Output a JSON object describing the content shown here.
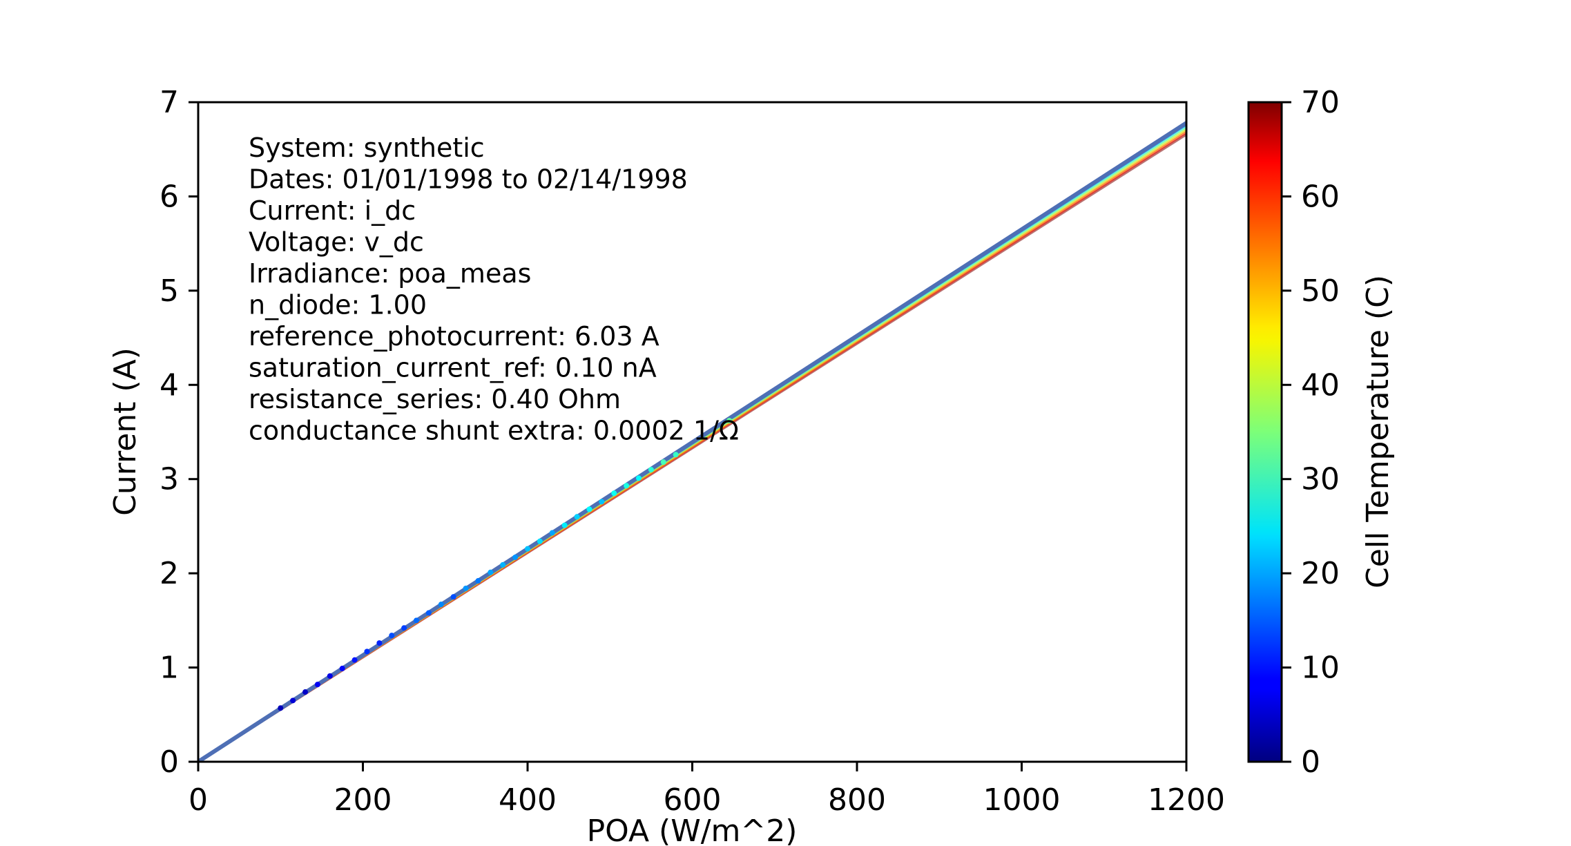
{
  "chart_data": {
    "type": "scatter",
    "xlabel": "POA (W/m^2)",
    "ylabel": "Current (A)",
    "xlim": [
      0,
      1200
    ],
    "ylim": [
      0,
      7
    ],
    "xticks": [
      0,
      200,
      400,
      600,
      800,
      1000,
      1200
    ],
    "yticks": [
      0,
      1,
      2,
      3,
      4,
      5,
      6,
      7
    ],
    "grid": false,
    "colorbar": {
      "label": "Cell Temperature (C)",
      "colormap": "jet",
      "range": [
        0,
        70
      ],
      "ticks": [
        0,
        10,
        20,
        30,
        40,
        50,
        60,
        70
      ]
    },
    "annotations": [
      "System: synthetic",
      "Dates: 01/01/1998 to 02/14/1998",
      "Current: i_dc",
      "Voltage: v_dc",
      "Irradiance: poa_meas",
      "n_diode: 1.00",
      "reference_photocurrent: 6.03 A",
      "saturation_current_ref: 0.10 nA",
      "resistance_series: 0.40 Ohm",
      "conductance shunt extra: 0.0002 1/Ω"
    ],
    "model_lines": [
      {
        "temperature": 0,
        "x": [
          0,
          1200
        ],
        "y": [
          0,
          6.78
        ]
      },
      {
        "temperature": 10,
        "x": [
          0,
          1200
        ],
        "y": [
          0,
          6.77
        ]
      },
      {
        "temperature": 20,
        "x": [
          0,
          1200
        ],
        "y": [
          0,
          6.76
        ]
      },
      {
        "temperature": 30,
        "x": [
          0,
          1200
        ],
        "y": [
          0,
          6.74
        ]
      },
      {
        "temperature": 40,
        "x": [
          0,
          1200
        ],
        "y": [
          0,
          6.72
        ]
      },
      {
        "temperature": 50,
        "x": [
          0,
          1200
        ],
        "y": [
          0,
          6.7
        ]
      },
      {
        "temperature": 60,
        "x": [
          0,
          1200
        ],
        "y": [
          0,
          6.68
        ]
      },
      {
        "temperature": 70,
        "x": [
          0,
          1200
        ],
        "y": [
          0,
          6.66
        ]
      }
    ],
    "points": [
      {
        "x": 100,
        "y": 0.57,
        "t": 4
      },
      {
        "x": 115,
        "y": 0.65,
        "t": 6
      },
      {
        "x": 130,
        "y": 0.74,
        "t": 5
      },
      {
        "x": 145,
        "y": 0.82,
        "t": 8
      },
      {
        "x": 160,
        "y": 0.91,
        "t": 7
      },
      {
        "x": 175,
        "y": 0.99,
        "t": 9
      },
      {
        "x": 190,
        "y": 1.08,
        "t": 10
      },
      {
        "x": 205,
        "y": 1.17,
        "t": 12
      },
      {
        "x": 220,
        "y": 1.26,
        "t": 11
      },
      {
        "x": 235,
        "y": 1.34,
        "t": 14
      },
      {
        "x": 250,
        "y": 1.42,
        "t": 13
      },
      {
        "x": 265,
        "y": 1.5,
        "t": 16
      },
      {
        "x": 280,
        "y": 1.58,
        "t": 15
      },
      {
        "x": 295,
        "y": 1.67,
        "t": 18
      },
      {
        "x": 310,
        "y": 1.75,
        "t": 14
      },
      {
        "x": 325,
        "y": 1.84,
        "t": 19
      },
      {
        "x": 340,
        "y": 1.92,
        "t": 17
      },
      {
        "x": 355,
        "y": 2.01,
        "t": 20
      },
      {
        "x": 370,
        "y": 2.09,
        "t": 21
      },
      {
        "x": 385,
        "y": 2.17,
        "t": 19
      },
      {
        "x": 400,
        "y": 2.26,
        "t": 22
      },
      {
        "x": 415,
        "y": 2.34,
        "t": 24
      },
      {
        "x": 430,
        "y": 2.43,
        "t": 20
      },
      {
        "x": 445,
        "y": 2.51,
        "t": 25
      },
      {
        "x": 460,
        "y": 2.6,
        "t": 23
      },
      {
        "x": 475,
        "y": 2.68,
        "t": 26
      },
      {
        "x": 490,
        "y": 2.76,
        "t": 22
      },
      {
        "x": 505,
        "y": 2.85,
        "t": 27
      },
      {
        "x": 520,
        "y": 2.93,
        "t": 28
      },
      {
        "x": 535,
        "y": 3.01,
        "t": 26
      },
      {
        "x": 550,
        "y": 3.1,
        "t": 29
      },
      {
        "x": 565,
        "y": 3.18,
        "t": 31
      },
      {
        "x": 580,
        "y": 3.26,
        "t": 30
      },
      {
        "x": 645,
        "y": 3.62,
        "t": 33
      }
    ]
  }
}
